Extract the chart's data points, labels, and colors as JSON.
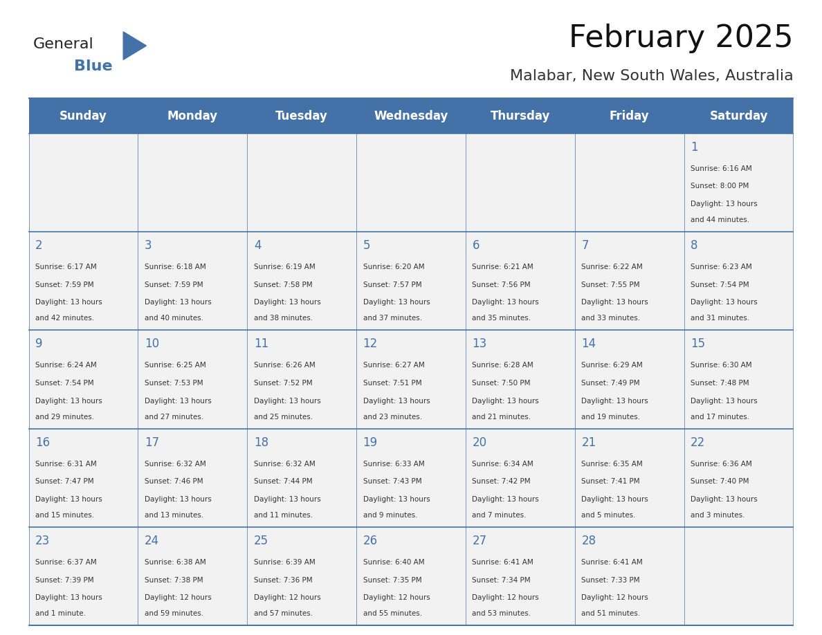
{
  "title": "February 2025",
  "subtitle": "Malabar, New South Wales, Australia",
  "days_of_week": [
    "Sunday",
    "Monday",
    "Tuesday",
    "Wednesday",
    "Thursday",
    "Friday",
    "Saturday"
  ],
  "header_bg": "#4472a8",
  "header_text": "#ffffff",
  "cell_bg_light": "#f2f2f2",
  "cell_bg_white": "#ffffff",
  "border_color": "#4472a8",
  "text_color": "#333333",
  "day_num_color": "#4472a8",
  "calendar_data": [
    {
      "day": 1,
      "col": 6,
      "row": 0,
      "sunrise": "6:16 AM",
      "sunset": "8:00 PM",
      "daylight": "13 hours and 44 minutes."
    },
    {
      "day": 2,
      "col": 0,
      "row": 1,
      "sunrise": "6:17 AM",
      "sunset": "7:59 PM",
      "daylight": "13 hours and 42 minutes."
    },
    {
      "day": 3,
      "col": 1,
      "row": 1,
      "sunrise": "6:18 AM",
      "sunset": "7:59 PM",
      "daylight": "13 hours and 40 minutes."
    },
    {
      "day": 4,
      "col": 2,
      "row": 1,
      "sunrise": "6:19 AM",
      "sunset": "7:58 PM",
      "daylight": "13 hours and 38 minutes."
    },
    {
      "day": 5,
      "col": 3,
      "row": 1,
      "sunrise": "6:20 AM",
      "sunset": "7:57 PM",
      "daylight": "13 hours and 37 minutes."
    },
    {
      "day": 6,
      "col": 4,
      "row": 1,
      "sunrise": "6:21 AM",
      "sunset": "7:56 PM",
      "daylight": "13 hours and 35 minutes."
    },
    {
      "day": 7,
      "col": 5,
      "row": 1,
      "sunrise": "6:22 AM",
      "sunset": "7:55 PM",
      "daylight": "13 hours and 33 minutes."
    },
    {
      "day": 8,
      "col": 6,
      "row": 1,
      "sunrise": "6:23 AM",
      "sunset": "7:54 PM",
      "daylight": "13 hours and 31 minutes."
    },
    {
      "day": 9,
      "col": 0,
      "row": 2,
      "sunrise": "6:24 AM",
      "sunset": "7:54 PM",
      "daylight": "13 hours and 29 minutes."
    },
    {
      "day": 10,
      "col": 1,
      "row": 2,
      "sunrise": "6:25 AM",
      "sunset": "7:53 PM",
      "daylight": "13 hours and 27 minutes."
    },
    {
      "day": 11,
      "col": 2,
      "row": 2,
      "sunrise": "6:26 AM",
      "sunset": "7:52 PM",
      "daylight": "13 hours and 25 minutes."
    },
    {
      "day": 12,
      "col": 3,
      "row": 2,
      "sunrise": "6:27 AM",
      "sunset": "7:51 PM",
      "daylight": "13 hours and 23 minutes."
    },
    {
      "day": 13,
      "col": 4,
      "row": 2,
      "sunrise": "6:28 AM",
      "sunset": "7:50 PM",
      "daylight": "13 hours and 21 minutes."
    },
    {
      "day": 14,
      "col": 5,
      "row": 2,
      "sunrise": "6:29 AM",
      "sunset": "7:49 PM",
      "daylight": "13 hours and 19 minutes."
    },
    {
      "day": 15,
      "col": 6,
      "row": 2,
      "sunrise": "6:30 AM",
      "sunset": "7:48 PM",
      "daylight": "13 hours and 17 minutes."
    },
    {
      "day": 16,
      "col": 0,
      "row": 3,
      "sunrise": "6:31 AM",
      "sunset": "7:47 PM",
      "daylight": "13 hours and 15 minutes."
    },
    {
      "day": 17,
      "col": 1,
      "row": 3,
      "sunrise": "6:32 AM",
      "sunset": "7:46 PM",
      "daylight": "13 hours and 13 minutes."
    },
    {
      "day": 18,
      "col": 2,
      "row": 3,
      "sunrise": "6:32 AM",
      "sunset": "7:44 PM",
      "daylight": "13 hours and 11 minutes."
    },
    {
      "day": 19,
      "col": 3,
      "row": 3,
      "sunrise": "6:33 AM",
      "sunset": "7:43 PM",
      "daylight": "13 hours and 9 minutes."
    },
    {
      "day": 20,
      "col": 4,
      "row": 3,
      "sunrise": "6:34 AM",
      "sunset": "7:42 PM",
      "daylight": "13 hours and 7 minutes."
    },
    {
      "day": 21,
      "col": 5,
      "row": 3,
      "sunrise": "6:35 AM",
      "sunset": "7:41 PM",
      "daylight": "13 hours and 5 minutes."
    },
    {
      "day": 22,
      "col": 6,
      "row": 3,
      "sunrise": "6:36 AM",
      "sunset": "7:40 PM",
      "daylight": "13 hours and 3 minutes."
    },
    {
      "day": 23,
      "col": 0,
      "row": 4,
      "sunrise": "6:37 AM",
      "sunset": "7:39 PM",
      "daylight": "13 hours and 1 minute."
    },
    {
      "day": 24,
      "col": 1,
      "row": 4,
      "sunrise": "6:38 AM",
      "sunset": "7:38 PM",
      "daylight": "12 hours and 59 minutes."
    },
    {
      "day": 25,
      "col": 2,
      "row": 4,
      "sunrise": "6:39 AM",
      "sunset": "7:36 PM",
      "daylight": "12 hours and 57 minutes."
    },
    {
      "day": 26,
      "col": 3,
      "row": 4,
      "sunrise": "6:40 AM",
      "sunset": "7:35 PM",
      "daylight": "12 hours and 55 minutes."
    },
    {
      "day": 27,
      "col": 4,
      "row": 4,
      "sunrise": "6:41 AM",
      "sunset": "7:34 PM",
      "daylight": "12 hours and 53 minutes."
    },
    {
      "day": 28,
      "col": 5,
      "row": 4,
      "sunrise": "6:41 AM",
      "sunset": "7:33 PM",
      "daylight": "12 hours and 51 minutes."
    }
  ],
  "num_rows": 5,
  "logo_text_general": "General",
  "logo_text_blue": "Blue",
  "logo_triangle_color": "#4472a8"
}
